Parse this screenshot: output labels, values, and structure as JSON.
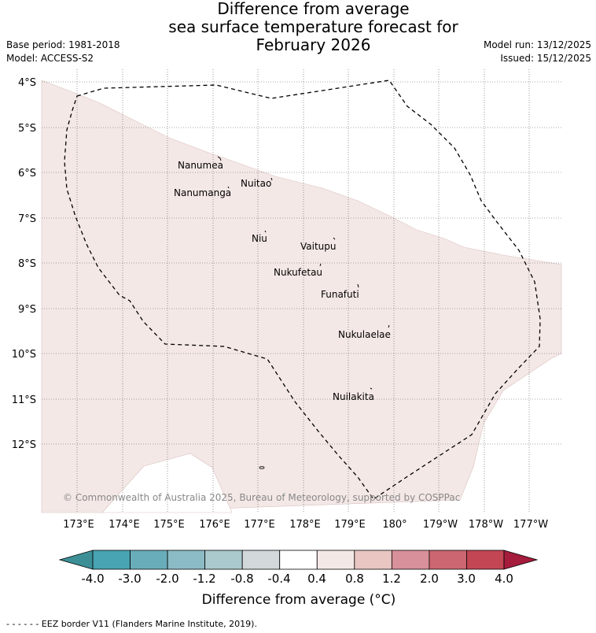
{
  "title": {
    "line1": "Difference from average",
    "line2": "sea surface temperature forecast for",
    "line3": "February 2026"
  },
  "meta": {
    "base_period": "Base period: 1981-2018",
    "model": "Model: ACCESS-S2",
    "model_run": "Model run: 13/12/2025",
    "issued": "Issued: 15/12/2025"
  },
  "map": {
    "lat_labels": [
      "4°S",
      "5°S",
      "6°S",
      "7°S",
      "8°S",
      "9°S",
      "10°S",
      "11°S",
      "12°S"
    ],
    "lon_labels": [
      "173°E",
      "174°E",
      "175°E",
      "176°E",
      "177°E",
      "178°E",
      "179°E",
      "180°",
      "179°W",
      "178°W",
      "177°W"
    ],
    "places": [
      {
        "name": "Nanumea"
      },
      {
        "name": "Nuitao"
      },
      {
        "name": "Nanumanga"
      },
      {
        "name": "Niu"
      },
      {
        "name": "Vaitupu"
      },
      {
        "name": "Nukufetau"
      },
      {
        "name": "Funafuti"
      },
      {
        "name": "Nukulaelae"
      },
      {
        "name": "Nuilakita"
      }
    ],
    "fill_color": "#f4e8e6",
    "eez_style": "dashed black line",
    "copyright": "© Commonwealth of Australia 2025, Bureau of Meteorology, supported by COSPPac"
  },
  "colorbar": {
    "ticks": [
      "-4.0",
      "-3.0",
      "-2.0",
      "-1.2",
      "-0.8",
      "-0.4",
      "0.4",
      "0.8",
      "1.2",
      "2.0",
      "3.0",
      "4.0"
    ],
    "low_extend_color": "#3d8f96",
    "high_extend_color": "#a51c3c",
    "colors": [
      "#48a3b2",
      "#6aadba",
      "#8bbcc6",
      "#a9c9cd",
      "#d3d9da",
      "#ffffff",
      "#f4e8e6",
      "#e9c6c2",
      "#d8909a",
      "#cc6670",
      "#c24654"
    ],
    "label": "Difference from average (°C)"
  },
  "footnote": "- -  - -  - - EEZ border V11 (Flanders Marine Institute, 2019)."
}
